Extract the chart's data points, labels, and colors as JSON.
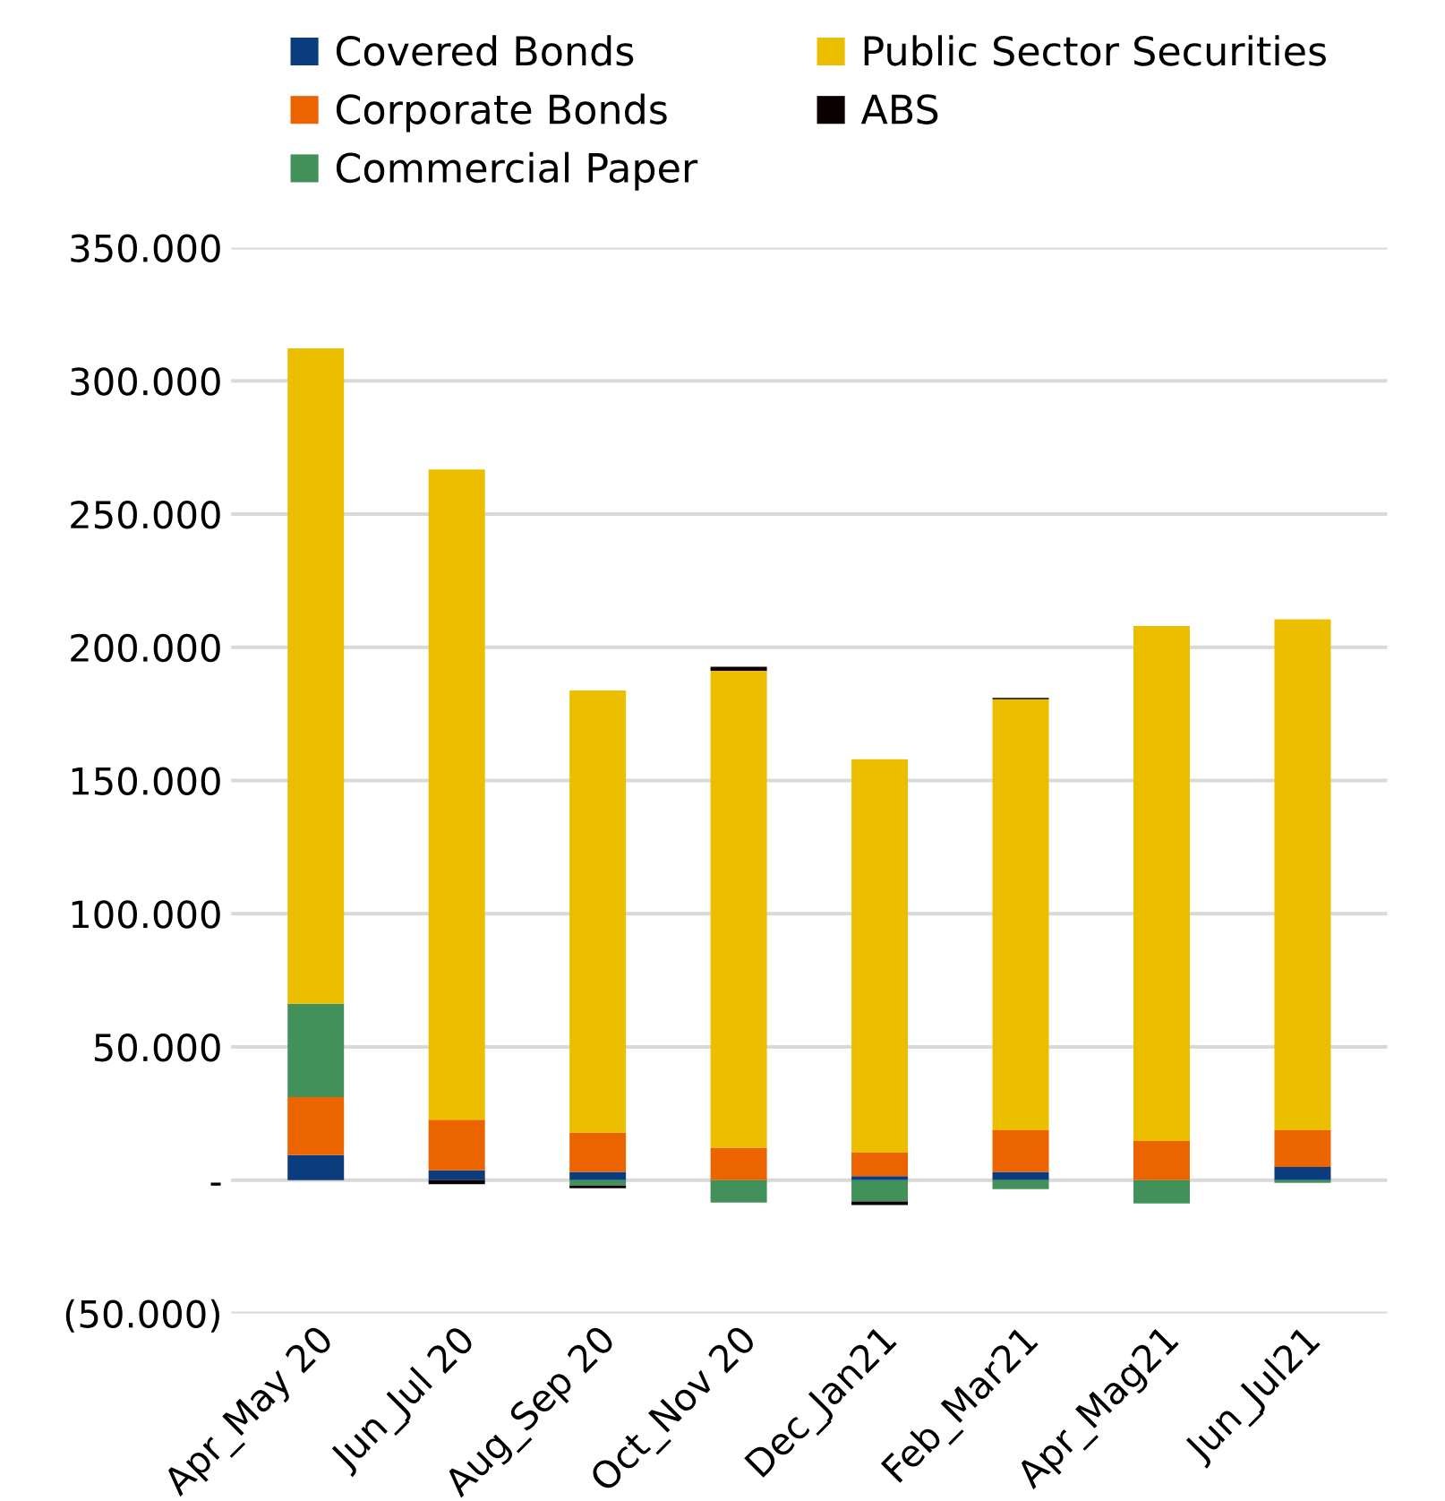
{
  "chart_data": {
    "type": "bar",
    "stacked": true,
    "categories": [
      "Apr_May 20",
      "Jun_Jul 20",
      "Aug_Sep 20",
      "Oct_Nov 20",
      "Dec_Jan21",
      "Feb_Mar21",
      "Apr_Mag21",
      "Jun_Jul21"
    ],
    "series": [
      {
        "name": "Covered Bonds",
        "color": "#0b3d7e",
        "values": [
          9400,
          3700,
          3100,
          0,
          1500,
          3100,
          0,
          5000
        ]
      },
      {
        "name": "Corporate Bonds",
        "color": "#ec6400",
        "values": [
          21800,
          19000,
          14700,
          12200,
          8800,
          15600,
          14700,
          13700
        ]
      },
      {
        "name": "Commercial Paper",
        "color": "#42915a",
        "values": [
          35000,
          0,
          -2000,
          -8400,
          -8000,
          -3400,
          -8700,
          -1000
        ]
      },
      {
        "name": "Public Sector Securities",
        "color": "#ecbe00",
        "values": [
          246000,
          244000,
          166000,
          179000,
          147700,
          161800,
          193300,
          191800
        ]
      },
      {
        "name": "ABS",
        "color": "#0a0000",
        "values": [
          0,
          -1500,
          -1000,
          1500,
          -1300,
          500,
          0,
          0
        ]
      }
    ],
    "ylim": [
      -50000,
      350000
    ],
    "yticks": [
      {
        "value": -50000,
        "label": "(50.000)"
      },
      {
        "value": 0,
        "label": "-"
      },
      {
        "value": 50000,
        "label": "50.000"
      },
      {
        "value": 100000,
        "label": "100.000"
      },
      {
        "value": 150000,
        "label": "150.000"
      },
      {
        "value": 200000,
        "label": "200.000"
      },
      {
        "value": 250000,
        "label": "250.000"
      },
      {
        "value": 300000,
        "label": "300.000"
      },
      {
        "value": 350000,
        "label": "350.000"
      }
    ],
    "grid": "y",
    "legend": "top"
  }
}
